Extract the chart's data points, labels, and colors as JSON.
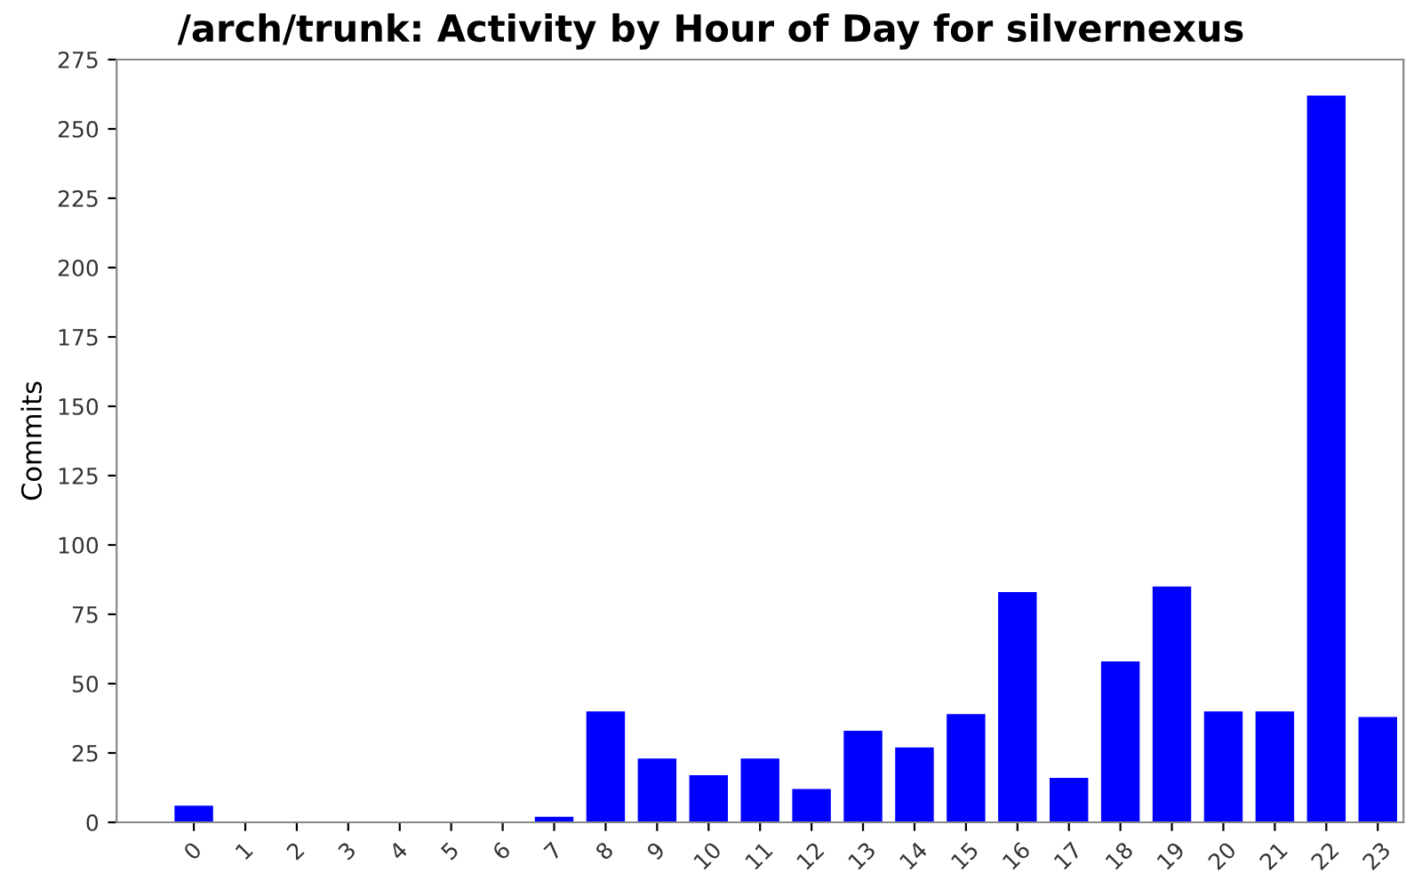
{
  "chart_data": {
    "type": "bar",
    "title": "/arch/trunk: Activity by Hour of Day for silvernexus",
    "ylabel": "Commits",
    "categories": [
      "0",
      "1",
      "2",
      "3",
      "4",
      "5",
      "6",
      "7",
      "8",
      "9",
      "10",
      "11",
      "12",
      "13",
      "14",
      "15",
      "16",
      "17",
      "18",
      "19",
      "20",
      "21",
      "22",
      "23"
    ],
    "values": [
      6,
      0,
      0,
      0,
      0,
      0,
      0,
      2,
      40,
      23,
      17,
      23,
      12,
      33,
      27,
      39,
      83,
      16,
      58,
      85,
      40,
      40,
      262,
      38
    ],
    "color": "#0000ff",
    "ylim": [
      0,
      275
    ],
    "yticks": [
      0,
      25,
      50,
      75,
      100,
      125,
      150,
      175,
      200,
      225,
      250,
      275
    ],
    "grid": false
  }
}
